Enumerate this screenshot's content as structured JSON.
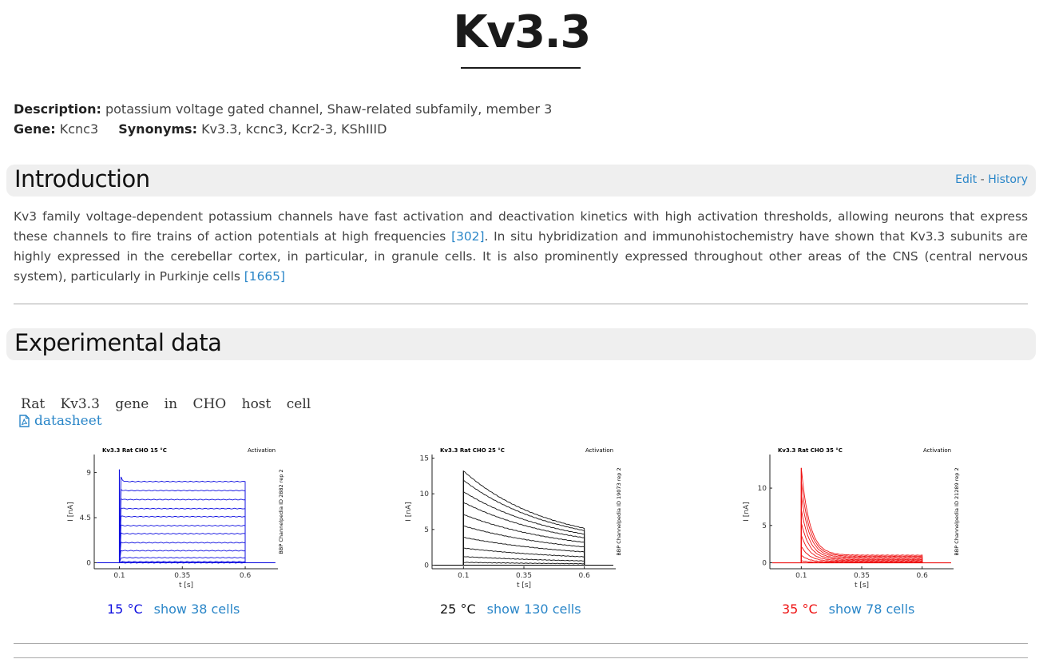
{
  "page": {
    "title": "Kv3.3"
  },
  "meta": {
    "description_label": "Description:",
    "description": "potassium voltage gated channel, Shaw-related subfamily, member 3",
    "gene_label": "Gene:",
    "gene": "Kcnc3",
    "synonyms_label": "Synonyms:",
    "synonyms": "Kv3.3, kcnc3, Kcr2-3, KShIIID"
  },
  "introduction": {
    "heading": "Introduction",
    "edit": "Edit",
    "separator": " - ",
    "history": "History",
    "text_1": "Kv3 family voltage-dependent potassium channels have fast activation and deactivation kinetics with high activation thresholds, allowing neurons that express these channels to fire trains of action potentials at high frequencies ",
    "ref_1": "[302]",
    "text_2": ". In situ hybridization and immunohistochemistry have shown that Kv3.3 subunits are highly expressed in the cerebellar cortex, in particular, in granule cells. It is also prominently expressed throughout other areas of the CNS (central nervous system), particularly in Purkinje cells ",
    "ref_2": "[1665]"
  },
  "experimental": {
    "heading": "Experimental data",
    "host_line": "Rat Kv3.3 gene in CHO host cell",
    "datasheet": "datasheet",
    "file_icon": "pdf-file-icon"
  },
  "chart_data": [
    {
      "type": "line",
      "title": "Kv3.3  Rat  CHO  15 °C",
      "protocol": "Activation",
      "xlabel": "t [s]",
      "ylabel": "I [nA]",
      "side_label": "BBP Channelpedia ID 2882 rep 2",
      "xlim": [
        0,
        0.73
      ],
      "ylim": [
        -0.6,
        10.8
      ],
      "xticks": [
        0.1,
        0.35,
        0.6
      ],
      "xtick_labels": [
        "0.1",
        "0.35",
        "0.6"
      ],
      "yticks": [
        0,
        4.5,
        9
      ],
      "ytick_labels": [
        "0",
        "4.5",
        "9"
      ],
      "color": "#1010e0",
      "kinetics": "sustained",
      "trace_amplitudes": [
        8.1,
        7.2,
        6.3,
        5.4,
        4.6,
        3.7,
        2.9,
        2.0,
        1.2,
        0.5,
        0.1,
        0.0
      ],
      "temp_label": "15 °C",
      "temp_color": "#1010e0",
      "cells_label": "show 38 cells"
    },
    {
      "type": "line",
      "title": "Kv3.3  Rat  CHO  25 °C",
      "protocol": "Activation",
      "xlabel": "t [s]",
      "ylabel": "I [nA]",
      "side_label": "BBP Channelpedia ID 19073 rep 2",
      "xlim": [
        -0.03,
        0.73
      ],
      "ylim": [
        -0.5,
        15.5
      ],
      "xticks": [
        0.1,
        0.35,
        0.6
      ],
      "xtick_labels": [
        "0.1",
        "0.35",
        "0.6"
      ],
      "yticks": [
        0,
        5,
        10,
        15
      ],
      "ytick_labels": [
        "0",
        "5",
        "10",
        "15"
      ],
      "color": "#111111",
      "kinetics": "inactivating",
      "trace_amplitudes": [
        13.2,
        11.9,
        10.3,
        8.8,
        7.1,
        5.5,
        3.9,
        2.4,
        1.2,
        0.4
      ],
      "temp_label": "25 °C",
      "temp_color": "#111111",
      "cells_label": "show 130 cells"
    },
    {
      "type": "line",
      "title": "Kv3.3  Rat  CHO  35 °C",
      "protocol": "Activation",
      "xlabel": "t [s]",
      "ylabel": "I [nA]",
      "side_label": "BBP Channelpedia ID 21289 rep 2",
      "xlim": [
        -0.03,
        0.73
      ],
      "ylim": [
        -0.8,
        14.5
      ],
      "xticks": [
        0.1,
        0.35,
        0.6
      ],
      "xtick_labels": [
        "0.1",
        "0.35",
        "0.6"
      ],
      "yticks": [
        0,
        5,
        10
      ],
      "ytick_labels": [
        "0",
        "5",
        "10"
      ],
      "color": "#ee1111",
      "kinetics": "fast-inactivating",
      "trace_amplitudes": [
        12.7,
        10.9,
        9.1,
        7.2,
        5.4,
        3.7,
        2.2,
        1.0,
        0.3
      ],
      "temp_label": "35 °C",
      "temp_color": "#ee1111",
      "cells_label": "show 78 cells"
    }
  ]
}
